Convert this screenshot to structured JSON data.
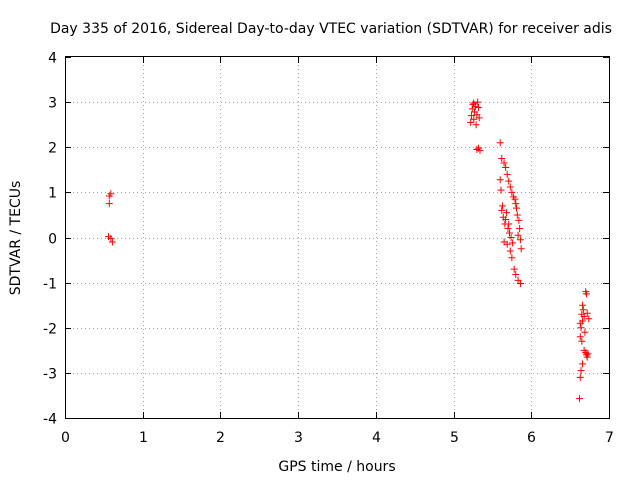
{
  "chart_data": {
    "type": "scatter",
    "title": "Day 335 of 2016, Sidereal Day-to-day VTEC variation (SDTVAR) for receiver adis",
    "xlabel": "GPS time / hours",
    "ylabel": "SDTVAR / TECUs",
    "xlim": [
      0,
      7
    ],
    "ylim": [
      -4,
      4
    ],
    "xticks": [
      0,
      1,
      2,
      3,
      4,
      5,
      6,
      7
    ],
    "yticks": [
      -4,
      -3,
      -2,
      -1,
      0,
      1,
      2,
      3,
      4
    ],
    "xtick_labels": [
      "0",
      "1",
      "2",
      "3",
      "4",
      "5",
      "6",
      "7"
    ],
    "ytick_labels": [
      "-4",
      "-3",
      "-2",
      "-1",
      "0",
      "1",
      "2",
      "3",
      "4"
    ],
    "grid": true,
    "marker": "+",
    "color": "#ff0000",
    "series": [
      {
        "name": "SDTVAR",
        "points": [
          [
            0.57,
            0.92
          ],
          [
            0.59,
            0.97
          ],
          [
            0.57,
            0.75
          ],
          [
            0.56,
            0.02
          ],
          [
            0.59,
            -0.02
          ],
          [
            0.61,
            -0.1
          ],
          [
            5.22,
            2.55
          ],
          [
            5.23,
            2.7
          ],
          [
            5.24,
            2.85
          ],
          [
            5.25,
            2.95
          ],
          [
            5.26,
            2.62
          ],
          [
            5.27,
            2.78
          ],
          [
            5.28,
            2.9
          ],
          [
            5.29,
            2.5
          ],
          [
            5.3,
            2.72
          ],
          [
            5.31,
            3.0
          ],
          [
            5.32,
            2.88
          ],
          [
            5.33,
            2.65
          ],
          [
            5.26,
            2.98
          ],
          [
            5.3,
            1.95
          ],
          [
            5.32,
            1.98
          ],
          [
            5.34,
            1.93
          ],
          [
            5.6,
            2.1
          ],
          [
            5.62,
            1.75
          ],
          [
            5.65,
            1.65
          ],
          [
            5.67,
            1.55
          ],
          [
            5.69,
            1.4
          ],
          [
            5.71,
            1.25
          ],
          [
            5.73,
            1.12
          ],
          [
            5.75,
            1.0
          ],
          [
            5.77,
            0.9
          ],
          [
            5.79,
            0.85
          ],
          [
            5.8,
            0.75
          ],
          [
            5.81,
            0.65
          ],
          [
            5.82,
            0.5
          ],
          [
            5.84,
            0.38
          ],
          [
            5.85,
            0.2
          ],
          [
            5.83,
            0.05
          ],
          [
            5.86,
            -0.05
          ],
          [
            5.87,
            -0.25
          ],
          [
            5.6,
            1.28
          ],
          [
            5.61,
            1.05
          ],
          [
            5.63,
            0.7
          ],
          [
            5.64,
            0.45
          ],
          [
            5.66,
            0.3
          ],
          [
            5.68,
            0.55
          ],
          [
            5.7,
            0.2
          ],
          [
            5.72,
            0.1
          ],
          [
            5.74,
            0.0
          ],
          [
            5.76,
            -0.12
          ],
          [
            5.73,
            -0.3
          ],
          [
            5.75,
            -0.45
          ],
          [
            5.78,
            -0.7
          ],
          [
            5.8,
            -0.82
          ],
          [
            5.83,
            -0.95
          ],
          [
            5.86,
            -1.02
          ],
          [
            5.62,
            0.6
          ],
          [
            5.65,
            -0.1
          ],
          [
            5.67,
            0.4
          ],
          [
            5.69,
            -0.15
          ],
          [
            5.71,
            0.3
          ],
          [
            6.62,
            -3.57
          ],
          [
            6.63,
            -3.1
          ],
          [
            6.64,
            -2.95
          ],
          [
            6.66,
            -2.8
          ],
          [
            6.65,
            -2.3
          ],
          [
            6.63,
            -2.2
          ],
          [
            6.64,
            -2.0
          ],
          [
            6.66,
            -1.85
          ],
          [
            6.65,
            -1.7
          ],
          [
            6.67,
            -1.6
          ],
          [
            6.66,
            -1.5
          ],
          [
            6.68,
            -1.75
          ],
          [
            6.69,
            -2.1
          ],
          [
            6.7,
            -2.55
          ],
          [
            6.71,
            -2.6
          ],
          [
            6.72,
            -2.65
          ],
          [
            6.73,
            -2.58
          ],
          [
            6.7,
            -1.2
          ],
          [
            6.71,
            -1.25
          ],
          [
            6.72,
            -1.68
          ],
          [
            6.74,
            -1.8
          ],
          [
            6.68,
            -2.5
          ],
          [
            6.63,
            -1.9
          ]
        ]
      }
    ]
  }
}
